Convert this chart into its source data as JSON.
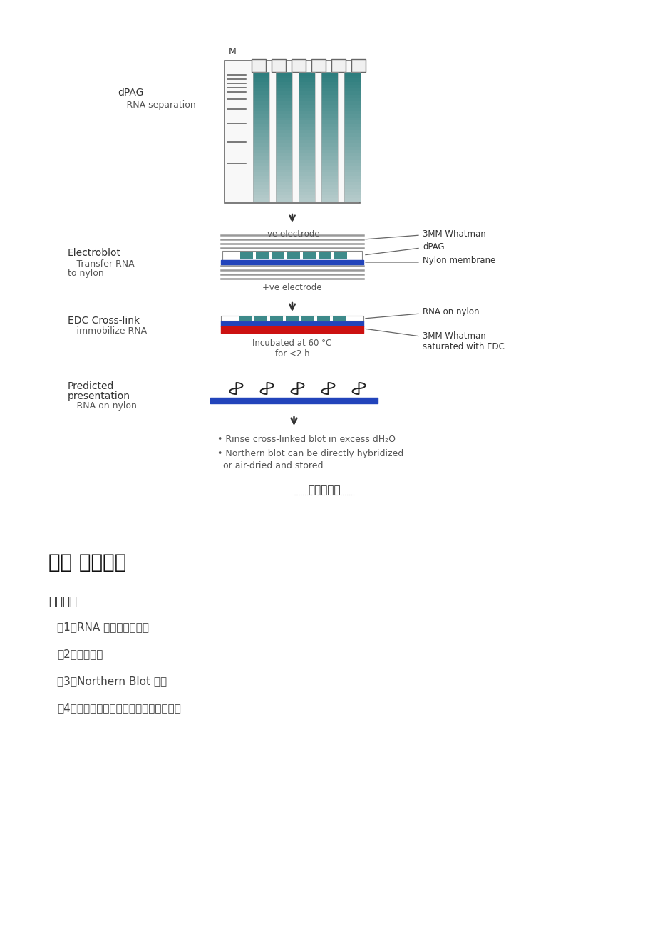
{
  "bg_color": "#ffffff",
  "title_section": "实验流程图",
  "section2_title": "二： 服务介绍",
  "section2_subtitle": "服务内容",
  "section2_items": [
    "（1）RNA 提取及浓度测定",
    "（2）探针合成",
    "（3）Northern Blot 实验",
    "（4）实验结果扫描图片及完整的实验报告"
  ],
  "step1_label1": "dPAG",
  "step1_label2": "—RNA separation",
  "step2_label1": "Electroblot",
  "step2_label2": "—Transfer RNA",
  "step2_label3": "to nylon",
  "step3_label1": "EDC Cross-link",
  "step3_label2": "—immobilize RNA",
  "step4_label1": "Predicted",
  "step4_label2": "presentation",
  "step4_label3": "—RNA on nylon",
  "ann_3mm_whatman": "3MM Whatman",
  "ann_dpag": "dPAG",
  "ann_nylon": "Nylon membrane",
  "ann_ve_electrode": "-ve electrode",
  "ann_pve_electrode": "+ve electrode",
  "ann_rna_nylon": "RNA on nylon",
  "ann_3mm_edc": "3MM Whatman\nsaturated with EDC",
  "ann_incubated": "Incubated at 60 °C\nfor <2 h",
  "bullet1": "• Rinse cross-linked blot in excess dH₂O",
  "bullet2": "• Northern blot can be directly hybridized\n  or air-dried and stored",
  "gel_m_label": "M"
}
